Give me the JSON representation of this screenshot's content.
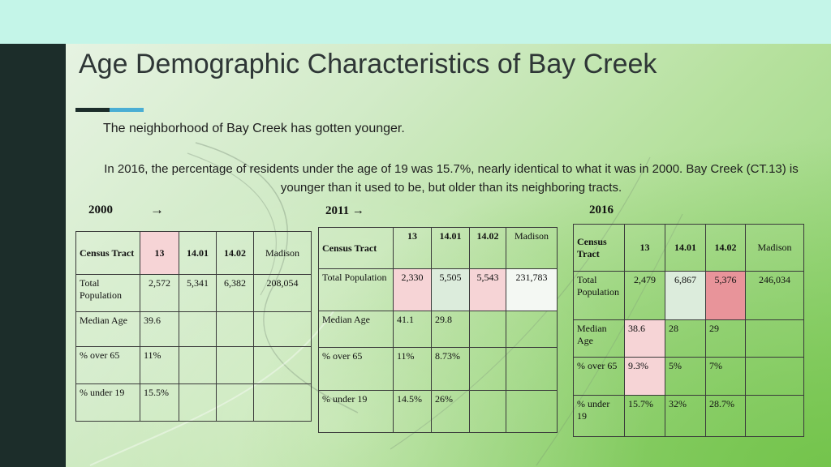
{
  "title": "Age Demographic Characteristics of Bay Creek",
  "subtitle": "The neighborhood of Bay Creek has gotten younger.",
  "paragraph": "In 2016, the percentage of residents under the age of 19 was 15.7%, nearly identical to what it was in 2000. Bay Creek (CT.13) is younger than it used to be, but older than its neighboring tracts.",
  "arrow": "→",
  "colors": {
    "sidebar": "#1c2d2a",
    "accent_blue": "#4aaed4",
    "highlight_pink": "#f6d4d6",
    "highlight_dark_pink": "#e8949a"
  },
  "tables": {
    "y2000": {
      "label": "2000",
      "headers": [
        "Census Tract",
        "13",
        "14.01",
        "14.02",
        "Madison"
      ],
      "rows": [
        {
          "label": "Total Population",
          "values": [
            "2,572",
            "5,341",
            "6,382",
            "208,054"
          ]
        },
        {
          "label": "Median Age",
          "values": [
            "39.6",
            "",
            "",
            ""
          ]
        },
        {
          "label": "% over 65",
          "values": [
            "11%",
            "",
            "",
            ""
          ]
        },
        {
          "label": "% under 19",
          "values": [
            "15.5%",
            "",
            "",
            ""
          ]
        }
      ]
    },
    "y2011": {
      "label": "2011 →",
      "headers": [
        "Census Tract",
        "13",
        "14.01",
        "14.02",
        "Madison"
      ],
      "rows": [
        {
          "label": "Total Population",
          "values": [
            "2,330",
            "5,505",
            "5,543",
            "231,783"
          ]
        },
        {
          "label": "Median Age",
          "values": [
            "41.1",
            "29.8",
            "",
            ""
          ]
        },
        {
          "label": "% over 65",
          "values": [
            "11%",
            "8.73%",
            "",
            ""
          ]
        },
        {
          "label": "% under 19",
          "values": [
            "14.5%",
            "26%",
            "",
            ""
          ]
        }
      ]
    },
    "y2016": {
      "label": "2016",
      "headers": [
        "Census Tract",
        "13",
        "14.01",
        "14.02",
        "Madison"
      ],
      "rows": [
        {
          "label": "Total Population",
          "values": [
            "2,479",
            "6,867",
            "5,376",
            "246,034"
          ]
        },
        {
          "label": "Median Age",
          "values": [
            "38.6",
            "28",
            "29",
            ""
          ]
        },
        {
          "label": "% over 65",
          "values": [
            "9.3%",
            "5%",
            "7%",
            ""
          ]
        },
        {
          "label": "% under 19",
          "values": [
            "15.7%",
            "32%",
            "28.7%",
            ""
          ]
        }
      ]
    }
  }
}
